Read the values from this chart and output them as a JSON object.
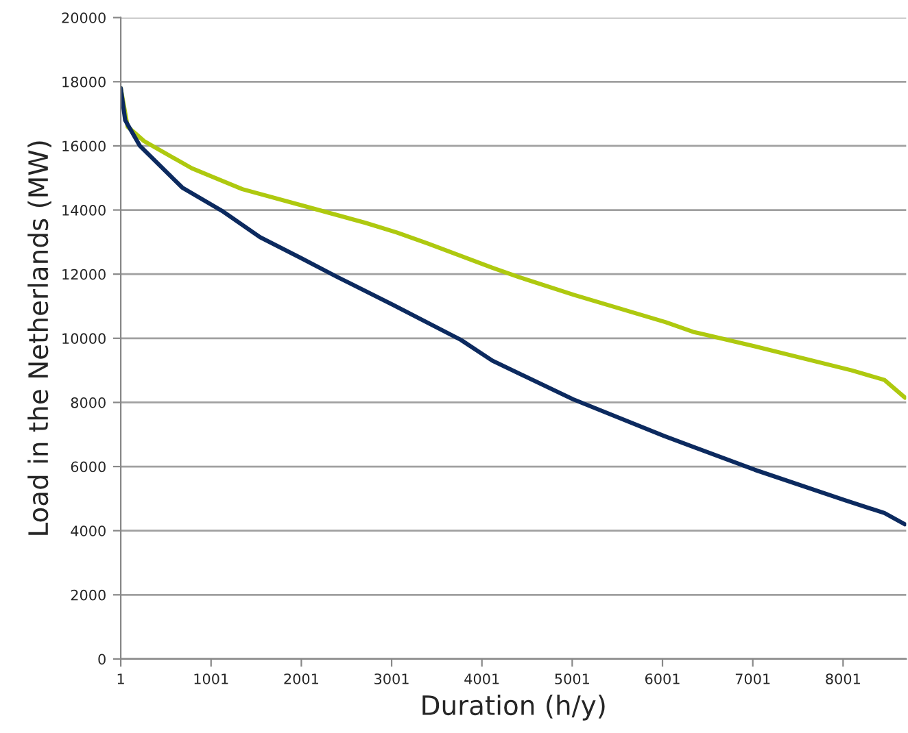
{
  "chart_data": {
    "type": "line",
    "xlabel": "Duration (h/y)",
    "ylabel": "Load in the Netherlands (MW)",
    "xlim": [
      1,
      8700
    ],
    "xticks": [
      1,
      1001,
      2001,
      3001,
      4001,
      5001,
      6001,
      7001,
      8001
    ],
    "ylim": [
      0,
      20000
    ],
    "yticks": [
      0,
      2000,
      4000,
      6000,
      8000,
      10000,
      12000,
      14000,
      16000,
      18000,
      20000
    ],
    "grid": "y",
    "marker": "none",
    "line_style": "solid",
    "series": [
      {
        "color": "#aec90f",
        "x": [
          1,
          77,
          258,
          788,
          1348,
          1998,
          2710,
          3058,
          3405,
          4117,
          4419,
          5024,
          6038,
          6340,
          7022,
          8096,
          8459,
          8686
        ],
        "values": [
          17800,
          16600,
          16150,
          15300,
          14650,
          14150,
          13600,
          13300,
          12950,
          12200,
          11900,
          11350,
          10500,
          10200,
          9750,
          9000,
          8700,
          8150
        ]
      },
      {
        "color": "#0c2a5f",
        "x": [
          1,
          50,
          213,
          682,
          1136,
          1544,
          1998,
          2407,
          3012,
          3768,
          4117,
          5009,
          6023,
          7022,
          8020,
          8459,
          8686
        ],
        "values": [
          17800,
          16800,
          16000,
          14700,
          13950,
          13150,
          12500,
          11900,
          11050,
          9950,
          9300,
          8100,
          6950,
          5900,
          4950,
          4550,
          4200
        ]
      }
    ]
  }
}
